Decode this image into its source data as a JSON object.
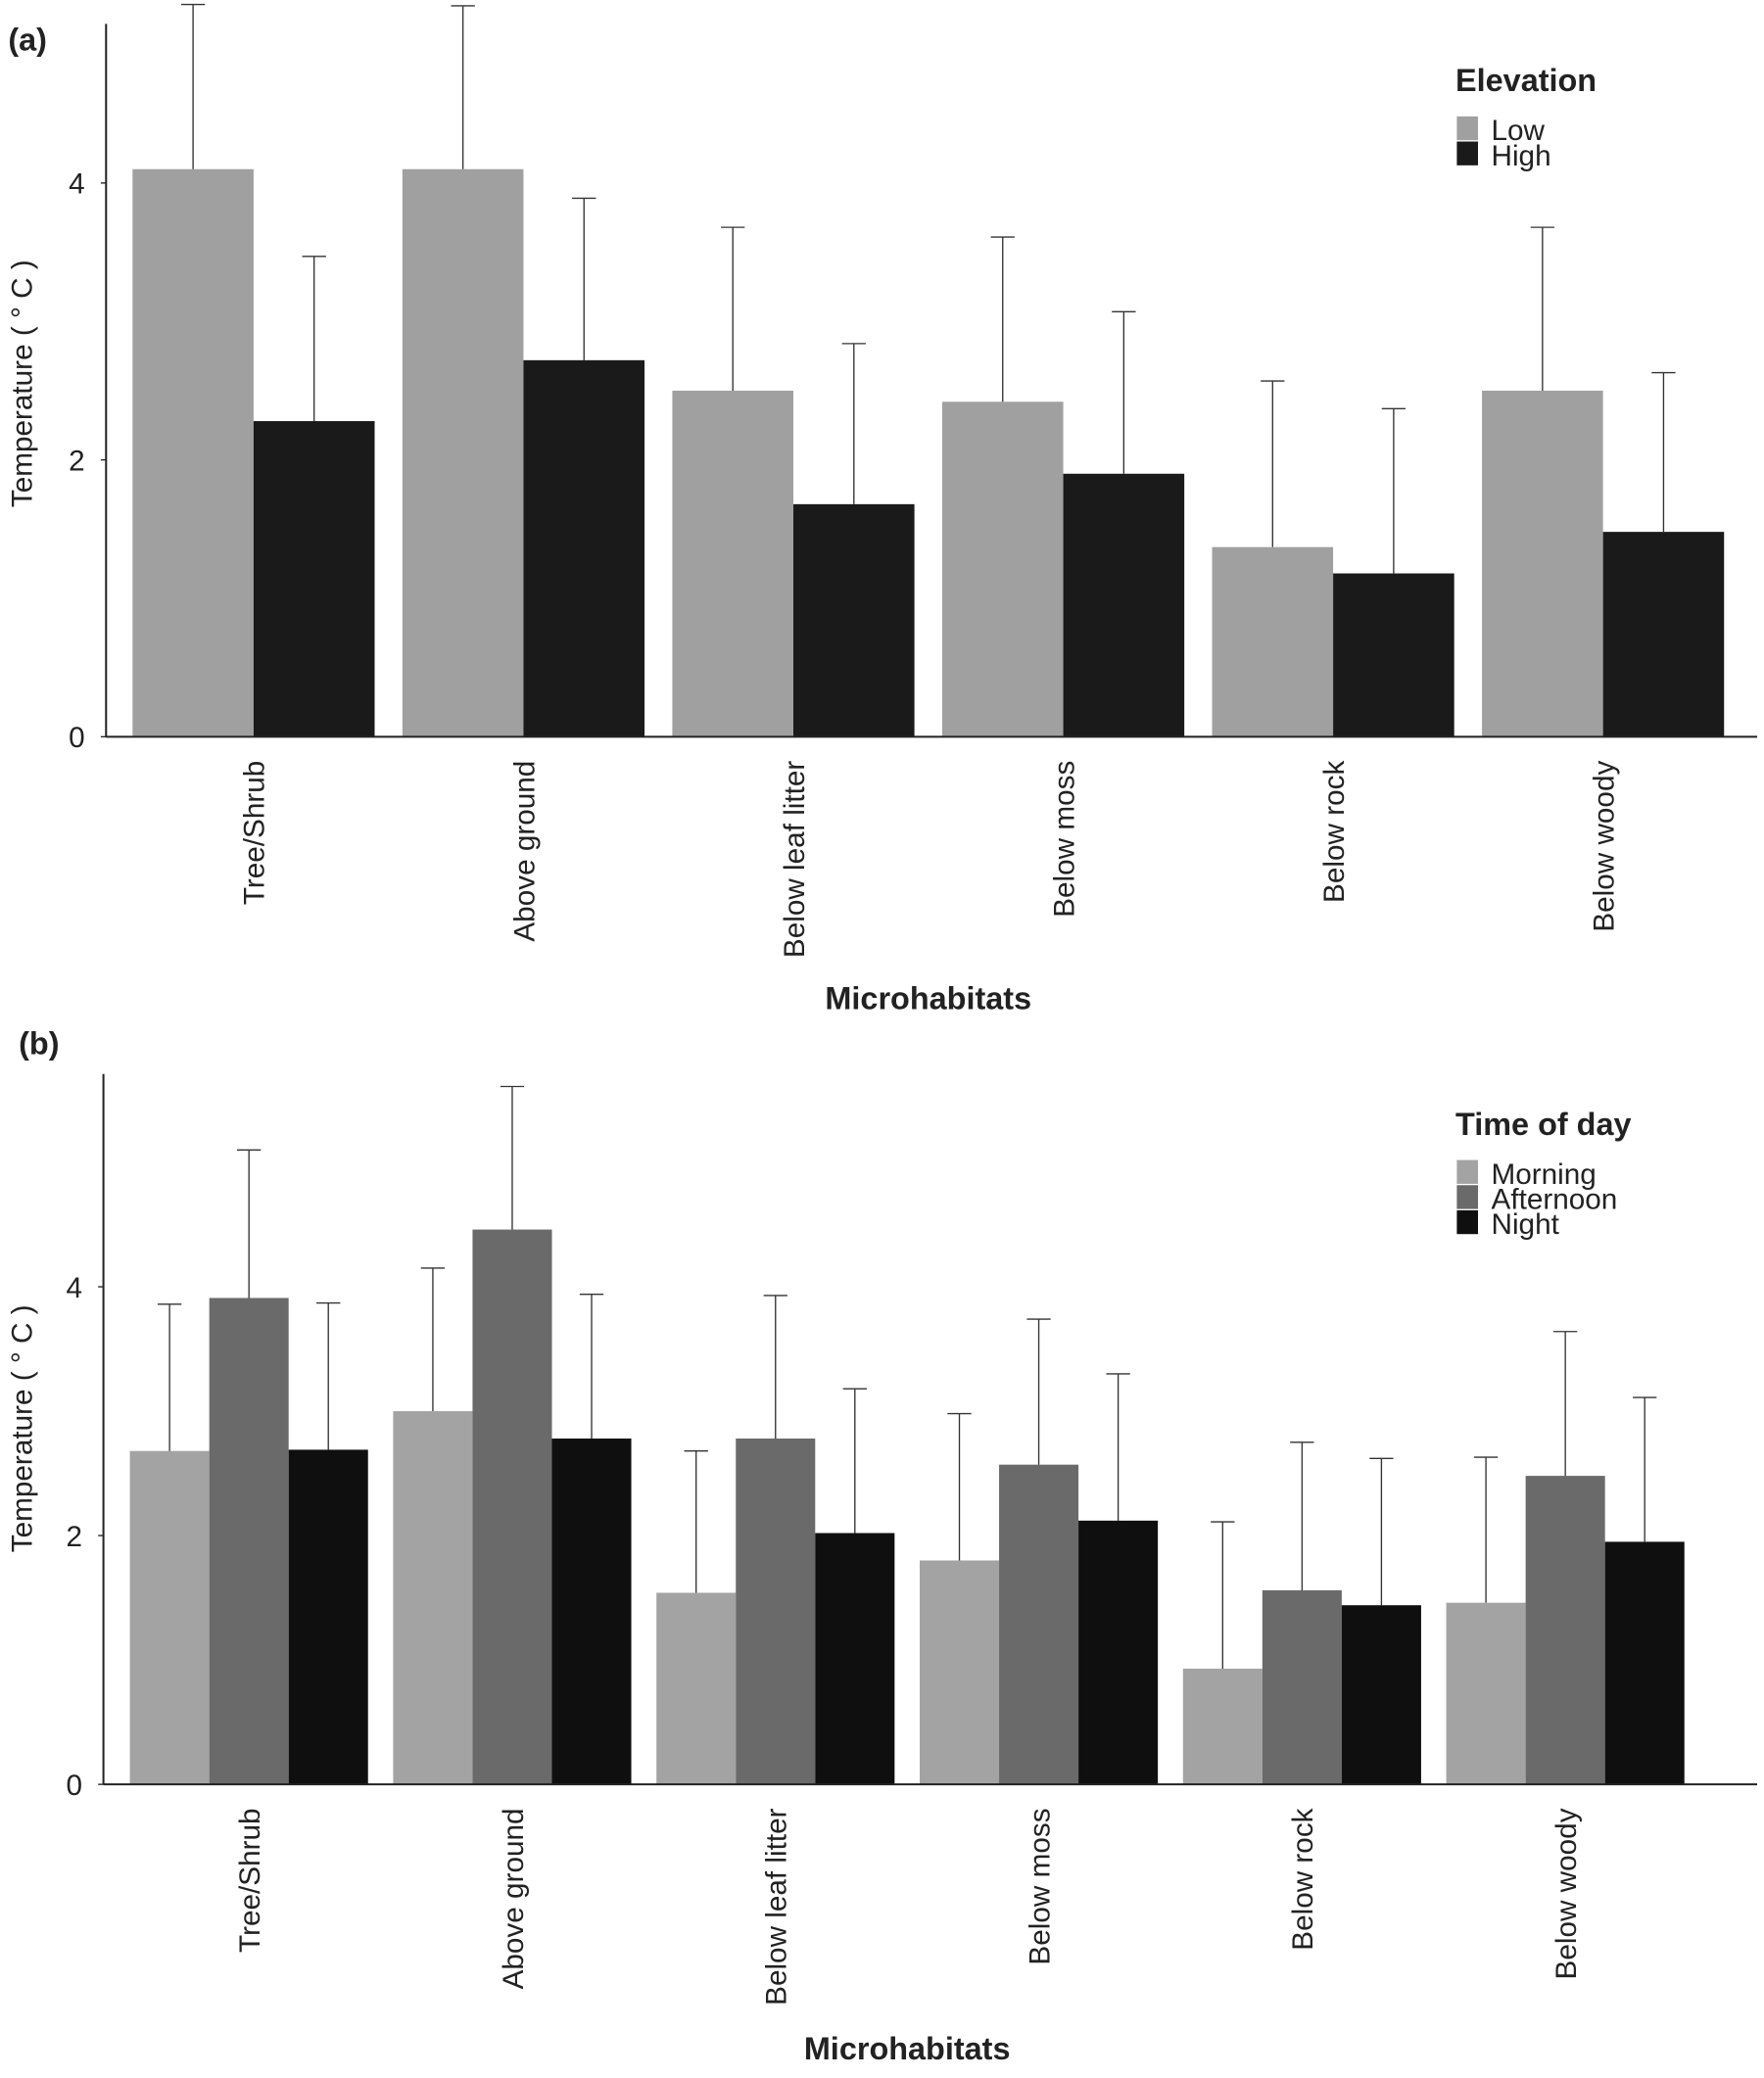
{
  "chart_data": [
    {
      "type": "bar",
      "panel_label": "(a)",
      "y_label": "Temperature ( ° C )",
      "x_label": "Microhabitats",
      "legend_title": "Elevation",
      "legend": "upper right",
      "categories": [
        "Tree/Shrub",
        "Above ground",
        "Below leaf litter",
        "Below moss",
        "Below rock",
        "Below woody"
      ],
      "series": [
        {
          "name": "Low",
          "color": "#a0a0a0",
          "values": [
            4.1,
            4.1,
            2.5,
            2.42,
            1.37,
            2.5
          ],
          "errors": [
            1.19,
            1.18,
            1.18,
            1.19,
            1.2,
            1.18
          ]
        },
        {
          "name": "High",
          "color": "#1a1a1a",
          "values": [
            2.28,
            2.72,
            1.68,
            1.9,
            1.18,
            1.48
          ],
          "errors": [
            1.19,
            1.17,
            1.16,
            1.17,
            1.19,
            1.15
          ]
        }
      ],
      "ylim": [
        0,
        5.15
      ],
      "yticks": [
        0,
        2,
        4
      ]
    },
    {
      "type": "bar",
      "panel_label": "(b)",
      "y_label": "Temperature ( ° C )",
      "x_label": "Microhabitats",
      "legend_title": "Time of day",
      "legend": "upper right",
      "categories": [
        "Tree/Shrub",
        "Above ground",
        "Below leaf litter",
        "Below moss",
        "Below rock",
        "Below woody"
      ],
      "series": [
        {
          "name": "Morning",
          "color": "#a3a3a3",
          "values": [
            2.68,
            3.0,
            1.54,
            1.8,
            0.93,
            1.46
          ],
          "errors": [
            1.18,
            1.15,
            1.14,
            1.18,
            1.18,
            1.17
          ]
        },
        {
          "name": "Afternoon",
          "color": "#6a6a6a",
          "values": [
            3.91,
            4.46,
            2.78,
            2.57,
            1.56,
            2.48
          ],
          "errors": [
            1.19,
            1.15,
            1.15,
            1.17,
            1.19,
            1.16
          ]
        },
        {
          "name": "Night",
          "color": "#0f0f0f",
          "values": [
            2.69,
            2.78,
            2.02,
            2.12,
            1.44,
            1.95
          ],
          "errors": [
            1.18,
            1.16,
            1.16,
            1.18,
            1.18,
            1.16
          ]
        }
      ],
      "ylim": [
        0,
        5.71
      ],
      "yticks": [
        0,
        2,
        4
      ]
    }
  ]
}
